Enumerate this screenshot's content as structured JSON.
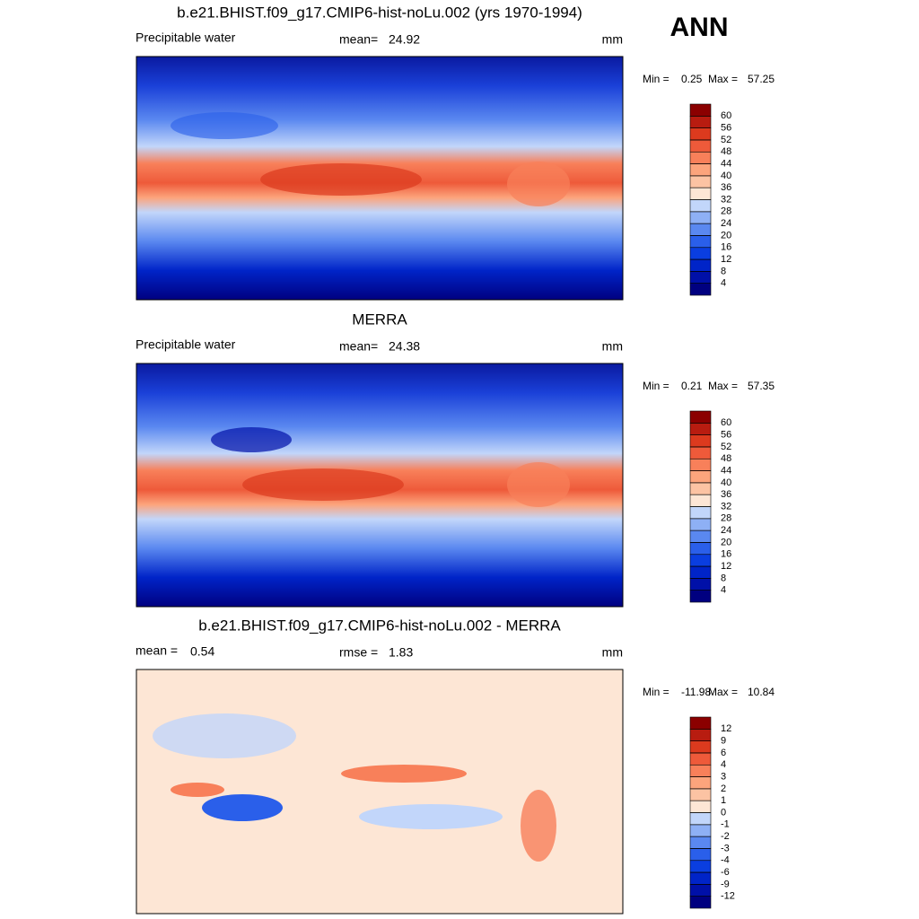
{
  "season": "ANN",
  "panels": [
    {
      "title": "b.e21.BHIST.f09_g17.CMIP6-hist-noLu.002 (yrs 1970-1994)",
      "left_label": "Precipitable water",
      "center_label": "mean=",
      "center_value": 24.92,
      "units": "mm",
      "min_label": "Min =",
      "min": 0.25,
      "max_label": "Max =",
      "max": 57.25,
      "levels": [
        4,
        8,
        12,
        16,
        20,
        24,
        28,
        32,
        36,
        40,
        44,
        48,
        52,
        56,
        60
      ],
      "colors": [
        "#000080",
        "#0010a8",
        "#0024c8",
        "#0a3ee0",
        "#2a5fea",
        "#5a88f0",
        "#8eb0f5",
        "#c2d6fa",
        "#fde6d5",
        "#fcc3a3",
        "#fca47c",
        "#f8805a",
        "#ee5a3a",
        "#dc3a1e",
        "#b81c10",
        "#8b0000"
      ]
    },
    {
      "title": "MERRA",
      "left_label": "Precipitable water",
      "center_label": "mean=",
      "center_value": 24.38,
      "units": "mm",
      "min_label": "Min =",
      "min": 0.21,
      "max_label": "Max =",
      "max": 57.35,
      "levels": [
        4,
        8,
        12,
        16,
        20,
        24,
        28,
        32,
        36,
        40,
        44,
        48,
        52,
        56,
        60
      ],
      "colors": [
        "#000080",
        "#0010a8",
        "#0024c8",
        "#0a3ee0",
        "#2a5fea",
        "#5a88f0",
        "#8eb0f5",
        "#c2d6fa",
        "#fde6d5",
        "#fcc3a3",
        "#fca47c",
        "#f8805a",
        "#ee5a3a",
        "#dc3a1e",
        "#b81c10",
        "#8b0000"
      ]
    },
    {
      "title": "b.e21.BHIST.f09_g17.CMIP6-hist-noLu.002 - MERRA",
      "left_label": "mean =",
      "left_value": 0.54,
      "center_label": "rmse =",
      "center_value": 1.83,
      "units": "mm",
      "min_label": "Min =",
      "min": -11.98,
      "max_label": "Max =",
      "max": 10.84,
      "levels": [
        -12,
        -9,
        -6,
        -4,
        -3,
        -2,
        -1,
        0,
        1,
        2,
        3,
        4,
        6,
        9,
        12
      ],
      "colors": [
        "#000080",
        "#0010a8",
        "#0024c8",
        "#0a3ee0",
        "#2a5fea",
        "#5a88f0",
        "#8eb0f5",
        "#c2d6fa",
        "#fde6d5",
        "#fcc3a3",
        "#fca47c",
        "#f8805a",
        "#ee5a3a",
        "#dc3a1e",
        "#b81c10",
        "#8b0000"
      ]
    }
  ]
}
